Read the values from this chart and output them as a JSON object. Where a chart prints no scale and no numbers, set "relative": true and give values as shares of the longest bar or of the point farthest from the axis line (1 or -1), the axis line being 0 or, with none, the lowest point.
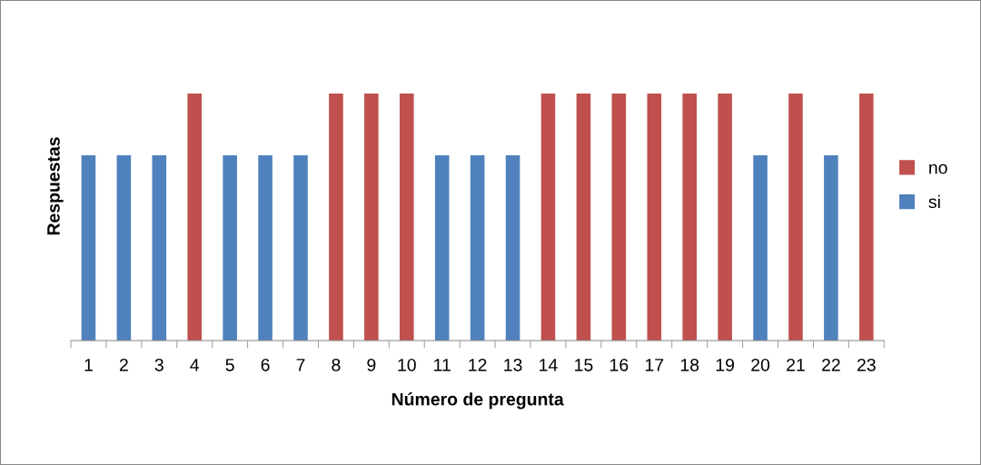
{
  "chart_data": {
    "type": "bar",
    "relative": true,
    "xlabel": "Número de pregunta",
    "ylabel": "Respuestas",
    "legend": "right",
    "grid": false,
    "categories": [
      "1",
      "2",
      "3",
      "4",
      "5",
      "6",
      "7",
      "8",
      "9",
      "10",
      "11",
      "12",
      "13",
      "14",
      "15",
      "16",
      "17",
      "18",
      "19",
      "20",
      "21",
      "22",
      "23"
    ],
    "series": [
      {
        "name": "no",
        "color": "#c0504d",
        "values": [
          null,
          null,
          null,
          1,
          null,
          null,
          null,
          1,
          1,
          1,
          null,
          null,
          null,
          1,
          1,
          1,
          1,
          1,
          1,
          null,
          1,
          null,
          1
        ]
      },
      {
        "name": "si",
        "color": "#4f81bd",
        "values": [
          0.75,
          0.75,
          0.75,
          null,
          0.75,
          0.75,
          0.75,
          null,
          null,
          null,
          0.75,
          0.75,
          0.75,
          null,
          null,
          null,
          null,
          null,
          null,
          0.75,
          null,
          0.75,
          null
        ]
      }
    ]
  }
}
